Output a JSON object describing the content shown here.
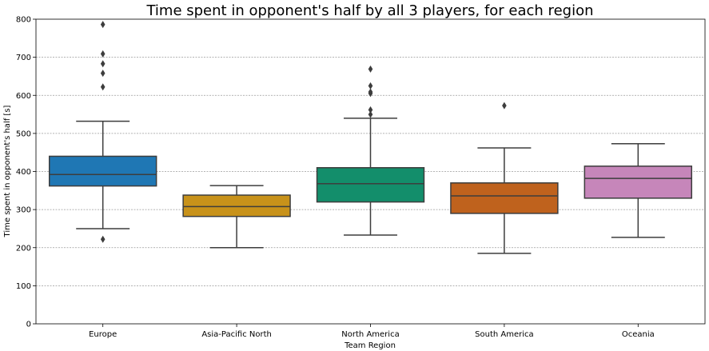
{
  "chart_data": {
    "type": "boxplot",
    "title": "Time spent in opponent's half by all 3 players, for each region",
    "xlabel": "Team Region",
    "ylabel": "Time spent in opponent's half [s]",
    "ylim": [
      0,
      800
    ],
    "yticks": [
      0,
      100,
      200,
      300,
      400,
      500,
      600,
      700,
      800
    ],
    "grid": "horizontal dashed",
    "categories": [
      "Europe",
      "Asia-Pacific North",
      "North America",
      "South America",
      "Oceania"
    ],
    "boxes": [
      {
        "category": "Europe",
        "color": "#1f77b4",
        "whisker_low": 250,
        "q1": 362,
        "median": 392,
        "q3": 440,
        "whisker_high": 532,
        "outliers": [
          222,
          622,
          658,
          683,
          709,
          786
        ]
      },
      {
        "category": "Asia-Pacific North",
        "color": "#c8921a",
        "whisker_low": 200,
        "q1": 282,
        "median": 308,
        "q3": 338,
        "whisker_high": 363,
        "outliers": []
      },
      {
        "category": "North America",
        "color": "#138e6b",
        "whisker_low": 233,
        "q1": 320,
        "median": 368,
        "q3": 410,
        "whisker_high": 540,
        "outliers": [
          550,
          562,
          605,
          609,
          625,
          669
        ]
      },
      {
        "category": "South America",
        "color": "#bf621d",
        "whisker_low": 185,
        "q1": 290,
        "median": 336,
        "q3": 370,
        "whisker_high": 462,
        "outliers": [
          573
        ]
      },
      {
        "category": "Oceania",
        "color": "#c686ba",
        "whisker_low": 227,
        "q1": 330,
        "median": 382,
        "q3": 414,
        "whisker_high": 473,
        "outliers": []
      }
    ]
  }
}
